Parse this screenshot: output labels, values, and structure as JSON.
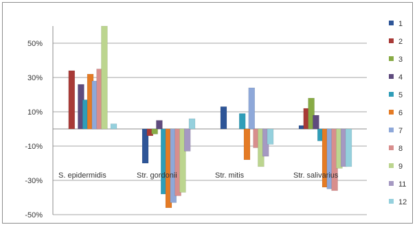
{
  "chart_data": {
    "type": "bar",
    "categories": [
      "S. epidermidis",
      "Str. gordonii",
      "Str. mitis",
      "Str. salivarius"
    ],
    "y_ticks": [
      "50%",
      "30%",
      "10%",
      "-10%",
      "-30%",
      "-50%"
    ],
    "ylim": [
      -50,
      60
    ],
    "grid": true,
    "legend_position": "right",
    "series": [
      {
        "name": "1",
        "color": "#2e5597",
        "values": [
          0,
          -20,
          13,
          2
        ]
      },
      {
        "name": "2",
        "color": "#a83a37",
        "values": [
          34,
          -4,
          0,
          12
        ]
      },
      {
        "name": "3",
        "color": "#88ab45",
        "values": [
          0,
          -3,
          0,
          18
        ]
      },
      {
        "name": "4",
        "color": "#5f4b7e",
        "values": [
          26,
          5,
          0,
          8
        ]
      },
      {
        "name": "5",
        "color": "#2f9db8",
        "values": [
          17,
          -38,
          9,
          -7
        ]
      },
      {
        "name": "6",
        "color": "#e47b25",
        "values": [
          32,
          -46,
          -18,
          -34
        ]
      },
      {
        "name": "7",
        "color": "#8ea8d9",
        "values": [
          28,
          -43,
          24,
          -35
        ]
      },
      {
        "name": "8",
        "color": "#d88e8d",
        "values": [
          35,
          -39,
          -11,
          -36
        ]
      },
      {
        "name": "9",
        "color": "#bcd58f",
        "values": [
          60,
          -37,
          -22,
          -23
        ]
      },
      {
        "name": "11",
        "color": "#a599c2",
        "values": [
          0,
          -13,
          -16,
          -22
        ]
      },
      {
        "name": "12",
        "color": "#95d0dd",
        "values": [
          3,
          6,
          -9,
          -22
        ]
      }
    ]
  }
}
